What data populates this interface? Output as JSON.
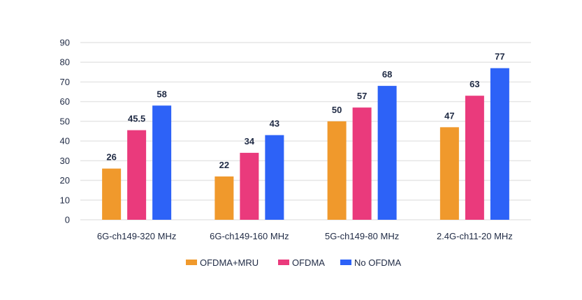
{
  "chart_data": {
    "type": "bar",
    "title": "",
    "xlabel": "",
    "ylabel": "",
    "ylim": [
      0,
      90
    ],
    "yticks": [
      0,
      10,
      20,
      30,
      40,
      50,
      60,
      70,
      80,
      90
    ],
    "grid": true,
    "legend_position": "bottom",
    "categories": [
      "6G-ch149-320 MHz",
      "6G-ch149-160 MHz",
      "5G-ch149-80 MHz",
      "2.4G-ch11-20 MHz"
    ],
    "series": [
      {
        "name": "OFDMA+MRU",
        "color": "#f0992c",
        "values": [
          26,
          22,
          50,
          47
        ],
        "labels": [
          "26",
          "22",
          "50",
          "47"
        ]
      },
      {
        "name": "OFDMA",
        "color": "#ea3a7c",
        "values": [
          45.5,
          34,
          57,
          63
        ],
        "labels": [
          "45.5",
          "34",
          "57",
          "63"
        ]
      },
      {
        "name": "No OFDMA",
        "color": "#2d62f7",
        "values": [
          58,
          43,
          68,
          77
        ],
        "labels": [
          "58",
          "43",
          "68",
          "77"
        ]
      }
    ]
  }
}
